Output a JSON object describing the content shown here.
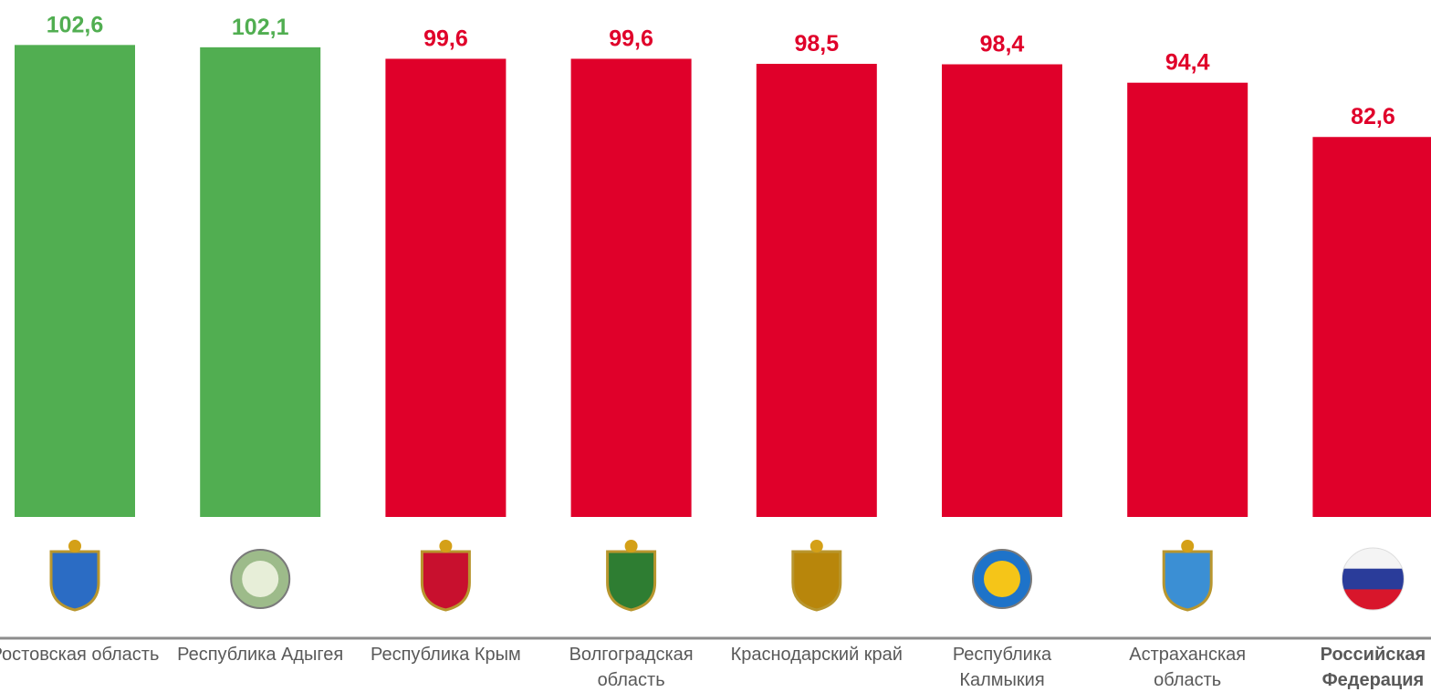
{
  "chart_data": {
    "type": "bar",
    "categories": [
      "Ростовская область",
      "Республика Адыгея",
      "Республика Крым",
      "Волгоградская область",
      "Краснодарский край",
      "Республика Калмыкия",
      "Астраханская область",
      "Российская Федерация"
    ],
    "values": [
      102.6,
      102.1,
      99.6,
      99.6,
      98.5,
      98.4,
      94.4,
      82.6
    ],
    "value_labels": [
      "102,6",
      "102,1",
      "99,6",
      "99,6",
      "98,5",
      "98,4",
      "94,4",
      "82,6"
    ],
    "colors": [
      "#51ae51",
      "#51ae51",
      "#e0002a",
      "#e0002a",
      "#e0002a",
      "#e0002a",
      "#e0002a",
      "#e0002a"
    ],
    "ylim": [
      0,
      110
    ]
  }
}
